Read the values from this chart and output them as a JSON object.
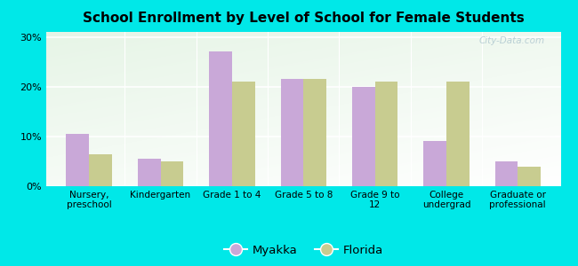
{
  "title": "School Enrollment by Level of School for Female Students",
  "categories": [
    "Nursery,\npreschool",
    "Kindergarten",
    "Grade 1 to 4",
    "Grade 5 to 8",
    "Grade 9 to\n12",
    "College\nundergrad",
    "Graduate or\nprofessional"
  ],
  "myakka": [
    10.5,
    5.5,
    27.0,
    21.5,
    20.0,
    9.0,
    5.0
  ],
  "florida": [
    6.5,
    5.0,
    21.0,
    21.5,
    21.0,
    21.0,
    4.0
  ],
  "myakka_color": "#c9a8d8",
  "florida_color": "#c8cc90",
  "background_color": "#00e8e8",
  "yticks": [
    0,
    10,
    20,
    30
  ],
  "ylim": [
    0,
    31
  ],
  "bar_width": 0.32,
  "legend_labels": [
    "Myakka",
    "Florida"
  ],
  "watermark": "City-Data.com"
}
